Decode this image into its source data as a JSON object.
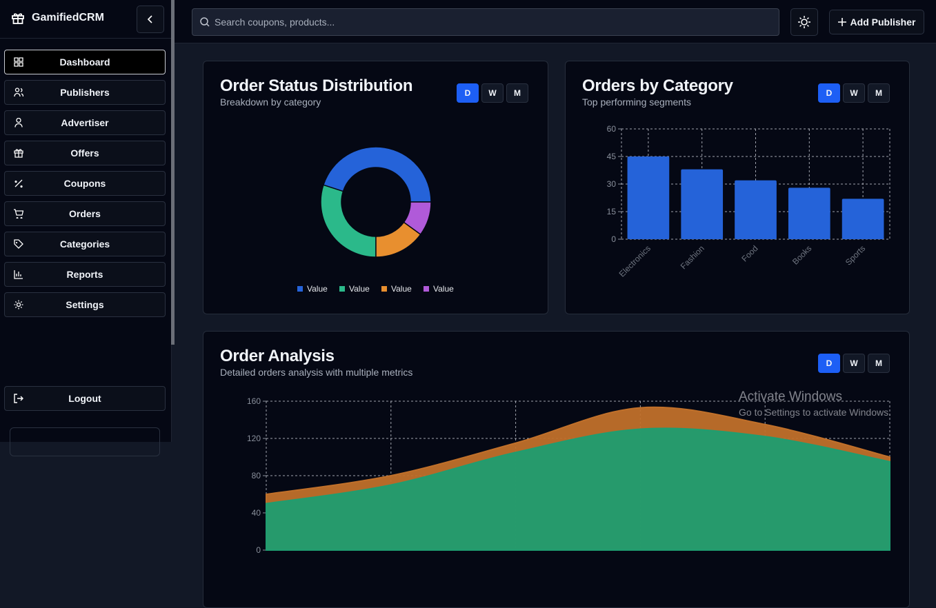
{
  "sidebar": {
    "brand": "GamifiedCRM",
    "nav": [
      "Dashboard",
      "Publishers",
      "Advertiser",
      "Offers",
      "Coupons",
      "Orders",
      "Categories",
      "Reports",
      "Settings"
    ],
    "logout": "Logout"
  },
  "topbar": {
    "search_placeholder": "Search coupons, products...",
    "add_button": "Add Publisher"
  },
  "chart_data": [
    {
      "type": "donut",
      "title": "Order Status Distribution",
      "subtitle": "Breakdown by category",
      "period_options": [
        "D",
        "W",
        "M"
      ],
      "categories": [
        "Value",
        "Value",
        "Value",
        "Value"
      ],
      "values": [
        45,
        30,
        15,
        10
      ],
      "colors": [
        "#2563d9",
        "#2bb98a",
        "#e88f2f",
        "#b05ad9"
      ]
    },
    {
      "type": "bar",
      "title": "Orders by Category",
      "subtitle": "Top performing segments",
      "period_options": [
        "D",
        "W",
        "M"
      ],
      "categories": [
        "Electronics",
        "Fashion",
        "Food",
        "Books",
        "Sports"
      ],
      "values": [
        45,
        38,
        32,
        28,
        22
      ],
      "color": "#2563d9",
      "ylim": [
        0,
        60
      ],
      "yticks": [
        0,
        15,
        30,
        45,
        60
      ],
      "grid": true
    },
    {
      "type": "area",
      "title": "Order Analysis",
      "subtitle": "Detailed orders analysis with multiple metrics",
      "period_options": [
        "D",
        "W",
        "M"
      ],
      "categories": [
        null,
        null,
        null,
        null,
        null,
        null
      ],
      "series": [
        {
          "color": "#c0702a",
          "values": [
            60,
            80,
            115,
            153,
            135,
            100
          ]
        },
        {
          "color": "#1f9d70",
          "values": [
            50,
            70,
            105,
            130,
            122,
            95
          ]
        }
      ],
      "ylim": [
        0,
        160
      ],
      "yticks": [
        0,
        40,
        80,
        120,
        160
      ],
      "grid": true
    }
  ],
  "watermark": {
    "title": "Activate Windows",
    "subtitle": "Go to Settings to activate Windows."
  }
}
